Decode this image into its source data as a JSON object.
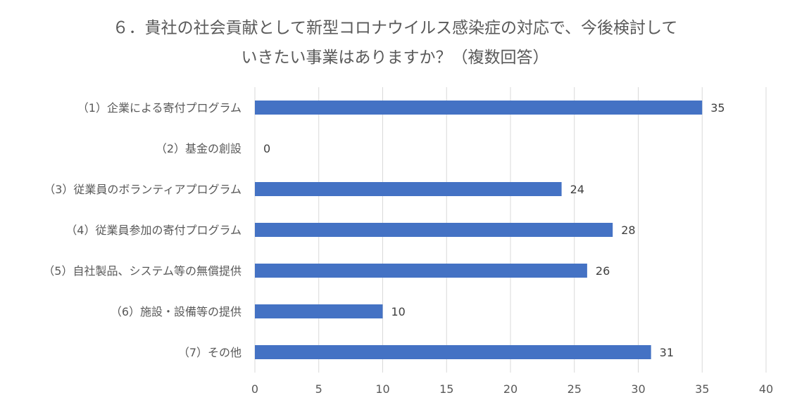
{
  "chart_data": {
    "type": "bar",
    "orientation": "horizontal",
    "title_line1": "６．貴社の社会貢献として新型コロナウイルス感染症の対応で、今後検討して",
    "title_line2": "いきたい事業はありますか？（複数回答）",
    "categories": [
      "（1）企業による寄付プログラム",
      "（2）基金の創設",
      "（3）従業員のボランティアプログラム",
      "（4）従業員参加の寄付プログラム",
      "（5）自社製品、システム等の無償提供",
      "（6）施設・設備等の提供",
      "（7）その他"
    ],
    "values": [
      35,
      0,
      24,
      28,
      26,
      10,
      31
    ],
    "xlim": [
      0,
      40
    ],
    "xticks": [
      0,
      5,
      10,
      15,
      20,
      25,
      30,
      35,
      40
    ],
    "grid": true,
    "legend": "none",
    "bar_color": "#4472C4",
    "grid_color": "#D9D9D9"
  }
}
